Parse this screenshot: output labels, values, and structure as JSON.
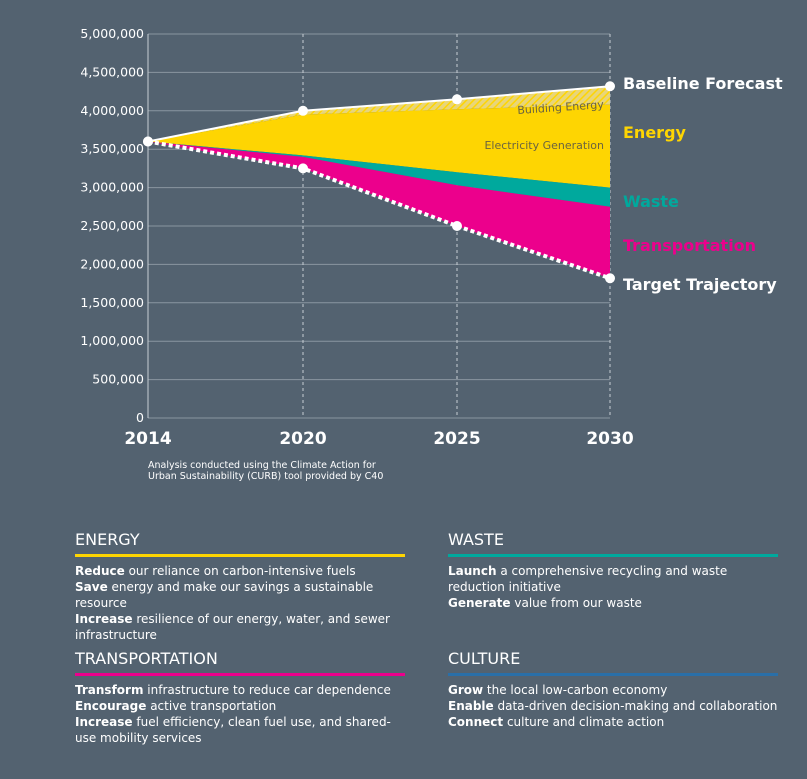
{
  "chart_data": {
    "type": "area",
    "x": [
      2014,
      2020,
      2025,
      2030
    ],
    "xticks": [
      "2014",
      "2020",
      "2025",
      "2030"
    ],
    "yticks": [
      "0",
      "500,000",
      "1,000,000",
      "1,500,000",
      "2,000,000",
      "2,500,000",
      "3,000,000",
      "3,500,000",
      "4,000,000",
      "4,500,000",
      "5,000,000"
    ],
    "ylim": [
      0,
      5000000
    ],
    "lines": [
      {
        "name": "Baseline Forecast",
        "values": [
          3600000,
          4000000,
          4150000,
          4320000
        ],
        "color": "#ffffff",
        "style": "solid"
      },
      {
        "name": "Target Trajectory",
        "values": [
          3600000,
          3250000,
          2500000,
          1820000
        ],
        "color": "#ffffff",
        "style": "dotted"
      }
    ],
    "bands": [
      {
        "name": "Building Energy",
        "upper": [
          3600000,
          4000000,
          4150000,
          4320000
        ],
        "lower": [
          3600000,
          3950000,
          4020000,
          4080000
        ],
        "color": "#fed502",
        "pattern": "hatched"
      },
      {
        "name": "Electricity Generation",
        "upper": [
          3600000,
          3950000,
          4020000,
          4080000
        ],
        "lower": [
          3600000,
          3420000,
          3200000,
          3000000
        ],
        "color": "#fed502"
      },
      {
        "name": "Waste",
        "upper": [
          3600000,
          3420000,
          3200000,
          3000000
        ],
        "lower": [
          3600000,
          3400000,
          3030000,
          2750000
        ],
        "color": "#00a99d"
      },
      {
        "name": "Transportation",
        "upper": [
          3600000,
          3400000,
          3030000,
          2750000
        ],
        "lower": [
          3600000,
          3250000,
          2500000,
          1820000
        ],
        "color": "#ec008c"
      }
    ],
    "labels": {
      "baseline": "Baseline Forecast",
      "energy": "Energy",
      "waste": "Waste",
      "transportation": "Transportation",
      "target": "Target Trajectory",
      "building_energy": "Building Energy",
      "electricity_generation": "Electricity Generation"
    },
    "grid": true
  },
  "note_line1": "Analysis conducted using the Climate Action for",
  "note_line2": "Urban Sustainability (CURB) tool provided by C40",
  "sections": {
    "energy": {
      "title": "ENERGY",
      "color": "#fed502",
      "items": [
        {
          "bold": "Reduce",
          "text": " our reliance on carbon-intensive fuels"
        },
        {
          "bold": "Save",
          "text": " energy and make our savings a sustainable resource"
        },
        {
          "bold": "Increase",
          "text": " resilience of our energy, water, and sewer infrastructure"
        }
      ]
    },
    "waste": {
      "title": "WASTE",
      "color": "#00a99d",
      "items": [
        {
          "bold": "Launch",
          "text": " a comprehensive recycling and waste reduction initiative"
        },
        {
          "bold": "Generate",
          "text": " value from our waste"
        }
      ]
    },
    "transportation": {
      "title": "TRANSPORTATION",
      "color": "#ec008c",
      "items": [
        {
          "bold": "Transform",
          "text": " infrastructure to reduce car dependence"
        },
        {
          "bold": "Encourage",
          "text": " active transportation"
        },
        {
          "bold": "Increase",
          "text": " fuel efficiency, clean fuel use, and shared-use mobility services"
        }
      ]
    },
    "culture": {
      "title": "CULTURE",
      "color": "#2a6fa8",
      "items": [
        {
          "bold": "Grow",
          "text": " the local low-carbon economy"
        },
        {
          "bold": "Enable",
          "text": " data-driven decision-making and collaboration"
        },
        {
          "bold": "Connect",
          "text": " culture and climate action"
        }
      ]
    }
  }
}
